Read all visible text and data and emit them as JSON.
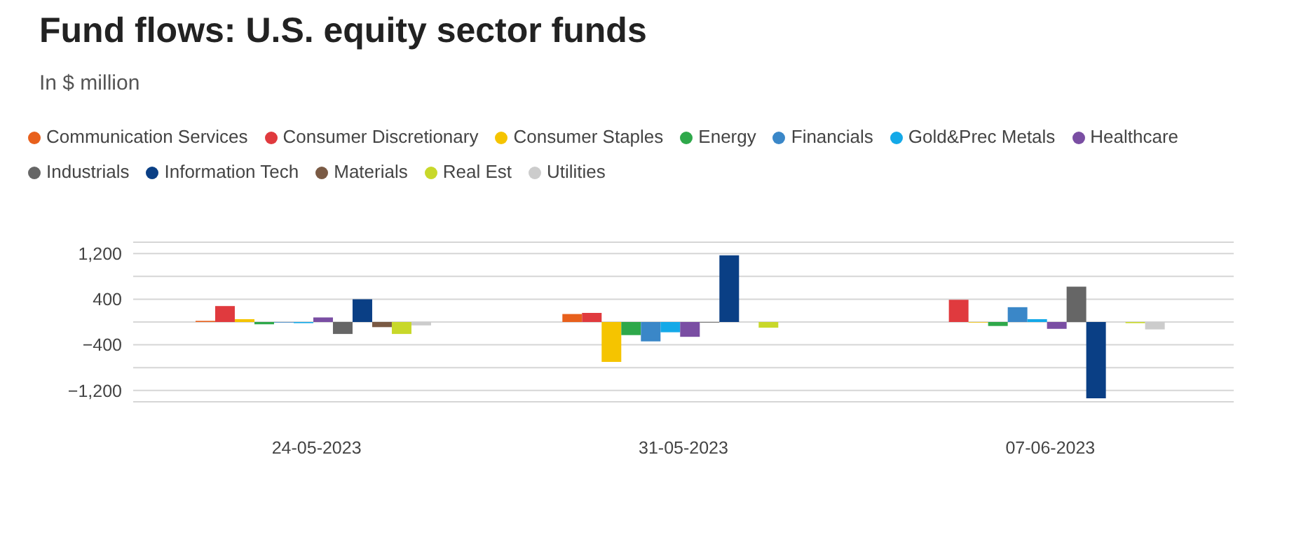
{
  "chart_data": {
    "type": "bar",
    "title": "Fund flows: U.S. equity sector funds",
    "subtitle": "In $ million",
    "categories": [
      "24-05-2023",
      "31-05-2023",
      "07-06-2023"
    ],
    "series": [
      {
        "name": "Communication Services",
        "color": "#e8601c",
        "values": [
          20,
          140,
          0
        ]
      },
      {
        "name": "Consumer Discretionary",
        "color": "#e03a3e",
        "values": [
          280,
          160,
          390
        ]
      },
      {
        "name": "Consumer Staples",
        "color": "#f5c400",
        "values": [
          50,
          -700,
          -10
        ]
      },
      {
        "name": "Energy",
        "color": "#2ea84a",
        "values": [
          -40,
          -230,
          -70
        ]
      },
      {
        "name": "Financials",
        "color": "#3a87c8",
        "values": [
          -10,
          -340,
          260
        ]
      },
      {
        "name": "Gold&Prec Metals",
        "color": "#14a9e8",
        "values": [
          -20,
          -180,
          50
        ]
      },
      {
        "name": "Healthcare",
        "color": "#7a4ea3",
        "values": [
          80,
          -260,
          -120
        ]
      },
      {
        "name": "Industrials",
        "color": "#666666",
        "values": [
          -210,
          -10,
          620
        ]
      },
      {
        "name": "Information Tech",
        "color": "#0a3f85",
        "values": [
          400,
          1170,
          -1340
        ]
      },
      {
        "name": "Materials",
        "color": "#7a5a44",
        "values": [
          -90,
          0,
          0
        ]
      },
      {
        "name": "Real Est",
        "color": "#c8d82a",
        "values": [
          -210,
          -100,
          -20
        ]
      },
      {
        "name": "Utilities",
        "color": "#cccccc",
        "values": [
          -60,
          0,
          -130
        ]
      }
    ],
    "ylim": [
      -1400,
      1400
    ],
    "yticks": [
      {
        "value": -1200,
        "label": "−1,200"
      },
      {
        "value": -800,
        "label": null
      },
      {
        "value": -400,
        "label": "−400"
      },
      {
        "value": 0,
        "label": null
      },
      400,
      {
        "value": 800,
        "label": null
      },
      {
        "value": 1200,
        "label": "1,200"
      }
    ],
    "grid": "y",
    "legend": "top"
  }
}
